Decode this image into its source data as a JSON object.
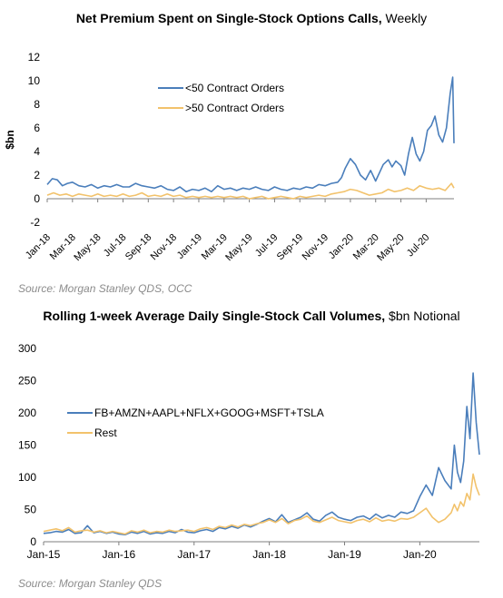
{
  "chart_data": [
    {
      "type": "line",
      "title_bold": "Net Premium  Spent on Single-Stock Options Calls,",
      "title_normal": "Weekly",
      "ylabel": "$bn",
      "ylim": [
        -2,
        12
      ],
      "yticks": [
        -2,
        0,
        2,
        4,
        6,
        8,
        10,
        12
      ],
      "x_ticks": [
        "Jan-18",
        "Mar-18",
        "May-18",
        "Jul-18",
        "Sep-18",
        "Nov-18",
        "Jan-19",
        "Mar-19",
        "May-19",
        "Jul-19",
        "Sep-19",
        "Nov-19",
        "Jan-20",
        "Mar-20",
        "May-20",
        "Jul-20"
      ],
      "x_tick_index": [
        0,
        2,
        4,
        6,
        8,
        10,
        12,
        14,
        16,
        18,
        20,
        22,
        24,
        26,
        28,
        30
      ],
      "x_range_months": [
        0,
        32.2
      ],
      "legend": "upper-left",
      "source": "Source: Morgan Stanley QDS, OCC",
      "series": [
        {
          "name": "<50 Contract Orders",
          "color": "#4a7ebb",
          "x": [
            0,
            0.4,
            0.8,
            1.2,
            1.6,
            2,
            2.5,
            3,
            3.5,
            4,
            4.5,
            5,
            5.5,
            6,
            6.5,
            7,
            7.5,
            8,
            8.5,
            9,
            9.5,
            10,
            10.5,
            11,
            11.5,
            12,
            12.5,
            13,
            13.5,
            14,
            14.5,
            15,
            15.5,
            16,
            16.5,
            17,
            17.5,
            18,
            18.5,
            19,
            19.5,
            20,
            20.5,
            21,
            21.5,
            22,
            22.5,
            23,
            23.3,
            23.6,
            24,
            24.4,
            24.8,
            25.2,
            25.6,
            26,
            26.3,
            26.6,
            27,
            27.3,
            27.6,
            28,
            28.3,
            28.6,
            28.9,
            29.2,
            29.5,
            29.8,
            30.1,
            30.4,
            30.7,
            31,
            31.3,
            31.6,
            31.9,
            32.1,
            32.2
          ],
          "values": [
            1.2,
            1.7,
            1.6,
            1.1,
            1.3,
            1.4,
            1.1,
            1.0,
            1.2,
            0.9,
            1.1,
            1.0,
            1.2,
            1.0,
            1.0,
            1.3,
            1.1,
            1.0,
            0.9,
            1.1,
            0.8,
            0.7,
            1.0,
            0.6,
            0.8,
            0.7,
            0.9,
            0.6,
            1.1,
            0.8,
            0.9,
            0.7,
            0.9,
            0.8,
            1.0,
            0.8,
            0.7,
            1.0,
            0.8,
            0.7,
            0.9,
            0.8,
            1.0,
            0.9,
            1.2,
            1.1,
            1.3,
            1.4,
            1.8,
            2.6,
            3.4,
            2.9,
            2.0,
            1.6,
            2.4,
            1.5,
            2.2,
            2.9,
            3.3,
            2.7,
            3.2,
            2.8,
            2.0,
            3.8,
            5.2,
            3.8,
            3.2,
            4.0,
            5.8,
            6.2,
            7.0,
            5.4,
            4.8,
            6.0,
            8.9,
            10.3,
            4.7
          ]
        },
        {
          "name": ">50 Contract Orders",
          "color": "#f2c26b",
          "x": [
            0,
            0.5,
            1,
            1.5,
            2,
            2.5,
            3,
            3.5,
            4,
            4.5,
            5,
            5.5,
            6,
            6.5,
            7,
            7.5,
            8,
            8.5,
            9,
            9.5,
            10,
            10.5,
            11,
            11.5,
            12,
            12.5,
            13,
            13.5,
            14,
            14.5,
            15,
            15.5,
            16,
            16.5,
            17,
            17.5,
            18,
            18.5,
            19,
            19.5,
            20,
            20.5,
            21,
            21.5,
            22,
            22.5,
            23,
            23.5,
            24,
            24.5,
            25,
            25.5,
            26,
            26.5,
            27,
            27.5,
            28,
            28.5,
            29,
            29.5,
            30,
            30.5,
            31,
            31.5,
            32,
            32.2
          ],
          "values": [
            0.3,
            0.5,
            0.3,
            0.4,
            0.2,
            0.4,
            0.3,
            0.2,
            0.4,
            0.2,
            0.3,
            0.2,
            0.4,
            0.2,
            0.3,
            0.5,
            0.2,
            0.3,
            0.2,
            0.4,
            0.2,
            0.3,
            0.1,
            0.2,
            0.1,
            0.2,
            0.1,
            0.2,
            0.1,
            0.2,
            0.1,
            0.2,
            0.0,
            0.1,
            0.2,
            0.0,
            0.1,
            0.2,
            0.1,
            0.0,
            0.2,
            0.1,
            0.2,
            0.3,
            0.2,
            0.4,
            0.5,
            0.6,
            0.8,
            0.7,
            0.5,
            0.3,
            0.4,
            0.5,
            0.8,
            0.6,
            0.7,
            0.9,
            0.7,
            1.1,
            0.9,
            0.8,
            0.9,
            0.7,
            1.3,
            0.9
          ]
        }
      ]
    },
    {
      "type": "line",
      "title_bold": "Rolling 1-week Average Daily Single-Stock Call Volumes,",
      "title_normal": "$bn Notional",
      "ylim": [
        0,
        300
      ],
      "yticks": [
        0,
        50,
        100,
        150,
        200,
        250,
        300
      ],
      "x_ticks": [
        "Jan-15",
        "Jan-16",
        "Jan-17",
        "Jan-18",
        "Jan-19",
        "Jan-20"
      ],
      "x_tick_index": [
        0,
        12,
        24,
        36,
        48,
        60
      ],
      "x_range_months": [
        0,
        69.5
      ],
      "legend": "upper-left",
      "source": "Source: Morgan Stanley QDS",
      "series": [
        {
          "name": "FB+AMZN+AAPL+NFLX+GOOG+MSFT+TSLA",
          "color": "#4a7ebb",
          "x": [
            0,
            1,
            2,
            3,
            4,
            5,
            6,
            7,
            8,
            9,
            10,
            11,
            12,
            13,
            14,
            15,
            16,
            17,
            18,
            19,
            20,
            21,
            22,
            23,
            24,
            25,
            26,
            27,
            28,
            29,
            30,
            31,
            32,
            33,
            34,
            35,
            36,
            37,
            38,
            39,
            40,
            41,
            42,
            43,
            44,
            45,
            46,
            47,
            48,
            49,
            50,
            51,
            52,
            53,
            54,
            55,
            56,
            57,
            58,
            59,
            60,
            61,
            62,
            63,
            64,
            65,
            65.5,
            66,
            66.5,
            67,
            67.5,
            68,
            68.5,
            69,
            69.5
          ],
          "values": [
            13,
            14,
            16,
            15,
            19,
            13,
            14,
            25,
            14,
            16,
            13,
            15,
            12,
            11,
            15,
            13,
            16,
            12,
            14,
            13,
            16,
            14,
            19,
            15,
            14,
            17,
            19,
            16,
            22,
            20,
            24,
            21,
            26,
            23,
            27,
            32,
            36,
            31,
            42,
            30,
            34,
            38,
            45,
            35,
            32,
            41,
            46,
            38,
            35,
            33,
            38,
            40,
            35,
            43,
            37,
            41,
            38,
            46,
            44,
            48,
            70,
            88,
            72,
            115,
            95,
            82,
            150,
            108,
            92,
            125,
            210,
            160,
            262,
            185,
            135
          ]
        },
        {
          "name": "Rest",
          "color": "#f2c26b",
          "x": [
            0,
            1,
            2,
            3,
            4,
            5,
            6,
            7,
            8,
            9,
            10,
            11,
            12,
            13,
            14,
            15,
            16,
            17,
            18,
            19,
            20,
            21,
            22,
            23,
            24,
            25,
            26,
            27,
            28,
            29,
            30,
            31,
            32,
            33,
            34,
            35,
            36,
            37,
            38,
            39,
            40,
            41,
            42,
            43,
            44,
            45,
            46,
            47,
            48,
            49,
            50,
            51,
            52,
            53,
            54,
            55,
            56,
            57,
            58,
            59,
            60,
            61,
            62,
            63,
            64,
            65,
            65.5,
            66,
            66.5,
            67,
            67.5,
            68,
            68.5,
            69,
            69.5
          ],
          "values": [
            16,
            18,
            20,
            17,
            22,
            15,
            17,
            18,
            15,
            17,
            14,
            16,
            14,
            12,
            17,
            15,
            18,
            14,
            16,
            15,
            18,
            16,
            17,
            18,
            16,
            20,
            22,
            19,
            24,
            22,
            26,
            23,
            27,
            25,
            28,
            30,
            34,
            30,
            36,
            28,
            33,
            35,
            40,
            32,
            30,
            34,
            38,
            33,
            31,
            29,
            33,
            35,
            31,
            37,
            32,
            34,
            32,
            36,
            35,
            38,
            45,
            52,
            38,
            30,
            35,
            45,
            58,
            48,
            62,
            55,
            75,
            65,
            105,
            85,
            72
          ]
        }
      ]
    }
  ]
}
